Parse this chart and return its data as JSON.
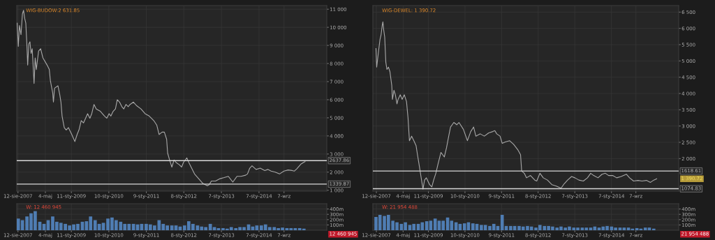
{
  "chart_data": [
    {
      "type": "line",
      "title": "WIG-BUDOW:2 631.85",
      "grid": true,
      "xlim": [
        "2007-07-31",
        "2015-10-27"
      ],
      "ylim": [
        950,
        11200
      ],
      "xticks": [
        {
          "value": "2007-08-12",
          "label": "12-sie-2007"
        },
        {
          "value": "2008-05-04",
          "label": "4-maj"
        },
        {
          "value": "2009-01-11",
          "label": "11-sty-2009"
        },
        {
          "value": "2010-01-10",
          "label": "10-sty-2010"
        },
        {
          "value": "2011-01-09",
          "label": "9-sty-2011"
        },
        {
          "value": "2012-01-08",
          "label": "8-sty-2012"
        },
        {
          "value": "2013-01-07",
          "label": "7-sty-2013"
        },
        {
          "value": "2014-01-07",
          "label": "7-sty-2014"
        },
        {
          "value": "2014-09-07",
          "label": "7-wrz"
        }
      ],
      "yticks": [
        {
          "value": 1000,
          "label": "1 000"
        },
        {
          "value": 2000,
          "label": "2 000"
        },
        {
          "value": 3000,
          "label": "3 000"
        },
        {
          "value": 4000,
          "label": "4 000"
        },
        {
          "value": 5000,
          "label": "5 000"
        },
        {
          "value": 6000,
          "label": "6 000"
        },
        {
          "value": 7000,
          "label": "7 000"
        },
        {
          "value": 8000,
          "label": "8 000"
        },
        {
          "value": 9000,
          "label": "9 000"
        },
        {
          "value": 10000,
          "label": "10 000"
        },
        {
          "value": 11000,
          "label": "11 000"
        }
      ],
      "ref_lines": [
        {
          "axis": "y",
          "value": 2637.86,
          "label": "2637.86",
          "color": "#d8d8d8"
        },
        {
          "axis": "y",
          "value": 1339.87,
          "label": "1339.87",
          "color": "#d8d8d8"
        }
      ],
      "series": [
        {
          "color": "#a8a8a8",
          "x": [
            "2007-08-04",
            "2007-08-15",
            "2007-08-26",
            "2007-09-10",
            "2007-09-24",
            "2007-10-05",
            "2007-10-16",
            "2007-10-27",
            "2007-11-07",
            "2007-11-14",
            "2007-11-25",
            "2007-12-06",
            "2007-12-17",
            "2007-12-28",
            "2008-01-15",
            "2008-01-26",
            "2008-02-06",
            "2008-02-28",
            "2008-03-19",
            "2008-04-10",
            "2008-05-20",
            "2008-06-11",
            "2008-06-22",
            "2008-07-14",
            "2008-07-21",
            "2008-08-01",
            "2008-09-03",
            "2008-09-21",
            "2008-10-02",
            "2008-10-13",
            "2008-11-03",
            "2008-11-22",
            "2008-12-14",
            "2009-01-15",
            "2009-02-14",
            "2009-03-08",
            "2009-03-26",
            "2009-04-17",
            "2009-05-09",
            "2009-06-18",
            "2009-07-10",
            "2009-07-28",
            "2009-08-19",
            "2009-09-10",
            "2009-10-20",
            "2009-11-29",
            "2009-12-21",
            "2010-01-12",
            "2010-01-30",
            "2010-02-21",
            "2010-03-15",
            "2010-04-02",
            "2010-04-24",
            "2010-05-16",
            "2010-06-04",
            "2010-06-25",
            "2010-07-17",
            "2010-08-04",
            "2010-09-06",
            "2010-10-05",
            "2010-11-18",
            "2010-12-28",
            "2011-02-06",
            "2011-03-22",
            "2011-04-21",
            "2011-05-13",
            "2011-06-11",
            "2011-07-03",
            "2011-07-25",
            "2011-08-04",
            "2011-08-23",
            "2011-09-14",
            "2011-10-05",
            "2011-10-24",
            "2011-11-25",
            "2011-12-17",
            "2012-01-05",
            "2012-02-06",
            "2012-02-25",
            "2012-03-30",
            "2012-04-21",
            "2012-05-31",
            "2012-07-10",
            "2012-08-23",
            "2012-09-10",
            "2012-10-02",
            "2012-11-11",
            "2012-12-25",
            "2013-02-03",
            "2013-03-15",
            "2013-04-28",
            "2013-06-07",
            "2013-07-17",
            "2013-08-30",
            "2013-09-17",
            "2013-10-09",
            "2013-10-31",
            "2013-12-10",
            "2014-01-19",
            "2014-03-04",
            "2014-04-02",
            "2014-05-05",
            "2014-06-14",
            "2014-07-25",
            "2014-09-06",
            "2014-10-16",
            "2014-11-25",
            "2014-12-17",
            "2015-01-08",
            "2015-02-17",
            "2015-03-19",
            "2015-03-30"
          ],
          "values": [
            10230,
            8950,
            10100,
            9590,
            10740,
            10940,
            10490,
            10230,
            8950,
            7920,
            9080,
            9200,
            8560,
            8820,
            6900,
            8310,
            7670,
            8690,
            8820,
            8310,
            7920,
            7670,
            7030,
            6380,
            5870,
            6640,
            6770,
            6260,
            5870,
            5100,
            4460,
            4330,
            4460,
            4080,
            3690,
            4080,
            4330,
            4850,
            4720,
            5230,
            4980,
            5230,
            5740,
            5490,
            5360,
            5100,
            4980,
            5230,
            5100,
            5360,
            5490,
            6000,
            5870,
            5620,
            5490,
            5740,
            5620,
            5740,
            5870,
            5680,
            5490,
            5230,
            5100,
            4850,
            4590,
            4080,
            4210,
            4210,
            3820,
            3050,
            2670,
            2280,
            2670,
            2540,
            2410,
            2280,
            2540,
            2790,
            2540,
            2150,
            1900,
            1640,
            1380,
            1250,
            1310,
            1510,
            1510,
            1640,
            1700,
            1770,
            1450,
            1770,
            1770,
            1830,
            1900,
            2220,
            2350,
            2150,
            2220,
            2090,
            2150,
            2060,
            2000,
            1900,
            2060,
            2120,
            2090,
            2060,
            2180,
            2440,
            2550,
            2580
          ]
        }
      ]
    },
    {
      "type": "line",
      "title": "WIG-DEWEL: 1 390.72",
      "grid": true,
      "xlim": [
        "2007-07-08",
        "2015-11-07"
      ],
      "ylim": [
        1000,
        6700
      ],
      "xticks": [
        {
          "value": "2007-08-12",
          "label": "12-sie-2007"
        },
        {
          "value": "2008-05-04",
          "label": "4-maj"
        },
        {
          "value": "2009-01-11",
          "label": "11-sty-2009"
        },
        {
          "value": "2010-01-10",
          "label": "10-sty-2010"
        },
        {
          "value": "2011-01-09",
          "label": "9-sty-2011"
        },
        {
          "value": "2012-01-08",
          "label": "8-sty-2012"
        },
        {
          "value": "2013-01-07",
          "label": "7-sty-2013"
        },
        {
          "value": "2014-01-07",
          "label": "7-sty-2014"
        },
        {
          "value": "2014-09-07",
          "label": "7-wrz"
        }
      ],
      "yticks": [
        {
          "value": 2000,
          "label": "2 000"
        },
        {
          "value": 2500,
          "label": "2 500"
        },
        {
          "value": 3000,
          "label": "3 000"
        },
        {
          "value": 3500,
          "label": "3 500"
        },
        {
          "value": 4000,
          "label": "4 000"
        },
        {
          "value": 4500,
          "label": "4 500"
        },
        {
          "value": 5000,
          "label": "5 000"
        },
        {
          "value": 5500,
          "label": "5 500"
        },
        {
          "value": 6000,
          "label": "6 000"
        },
        {
          "value": 6500,
          "label": "6 500"
        }
      ],
      "ref_lines": [
        {
          "axis": "y",
          "value": 1618.61,
          "label": "1618.61",
          "color": "#d8d8d8"
        },
        {
          "axis": "y",
          "value": 1074.83,
          "label": "1074.83",
          "color": "#d8d8d8"
        }
      ],
      "annotations": [
        "1 390.72"
      ],
      "series": [
        {
          "color": "#a8a8a8",
          "x": [
            "2007-08-08",
            "2007-08-15",
            "2007-09-03",
            "2007-09-17",
            "2007-09-28",
            "2007-10-09",
            "2007-10-16",
            "2007-10-24",
            "2007-11-03",
            "2007-11-14",
            "2007-11-25",
            "2007-12-10",
            "2007-12-25",
            "2008-01-12",
            "2008-01-19",
            "2008-02-03",
            "2008-02-17",
            "2008-03-04",
            "2008-03-15",
            "2008-04-06",
            "2008-04-24",
            "2008-05-16",
            "2008-06-07",
            "2008-06-22",
            "2008-07-06",
            "2008-07-28",
            "2008-08-19",
            "2008-09-10",
            "2008-09-24",
            "2008-10-09",
            "2008-10-31",
            "2008-11-18",
            "2008-12-03",
            "2008-12-21",
            "2009-01-23",
            "2009-02-14",
            "2009-03-04",
            "2009-03-26",
            "2009-04-17",
            "2009-05-16",
            "2009-06-18",
            "2009-07-10",
            "2009-08-01",
            "2009-08-19",
            "2009-09-21",
            "2009-10-20",
            "2009-11-11",
            "2009-12-25",
            "2010-02-03",
            "2010-03-08",
            "2010-04-06",
            "2010-04-28",
            "2010-06-11",
            "2010-07-21",
            "2010-09-03",
            "2010-10-13",
            "2010-11-03",
            "2010-11-22",
            "2010-12-25",
            "2011-01-15",
            "2011-02-14",
            "2011-03-30",
            "2011-05-09",
            "2011-06-22",
            "2011-07-17",
            "2011-07-28",
            "2011-08-23",
            "2011-09-14",
            "2011-10-24",
            "2011-12-06",
            "2011-12-25",
            "2012-01-26",
            "2012-02-28",
            "2012-04-10",
            "2012-05-24",
            "2012-07-03",
            "2012-08-23",
            "2012-09-24",
            "2012-10-27",
            "2012-12-06",
            "2013-01-08",
            "2013-02-17",
            "2013-04-02",
            "2013-05-13",
            "2013-06-14",
            "2013-07-14",
            "2013-08-26",
            "2013-10-05",
            "2013-11-07",
            "2013-12-10",
            "2014-01-19",
            "2014-02-28",
            "2014-04-13",
            "2014-06-04",
            "2014-07-06",
            "2014-08-15",
            "2014-09-28",
            "2014-11-07",
            "2014-12-21",
            "2015-01-30",
            "2015-03-04",
            "2015-04-02"
          ],
          "values": [
            5380,
            4810,
            5310,
            5660,
            5810,
            6090,
            6200,
            5950,
            5730,
            4960,
            4740,
            4810,
            4670,
            4250,
            3820,
            4100,
            3960,
            3680,
            3820,
            3960,
            3820,
            3960,
            3750,
            3250,
            2550,
            2690,
            2550,
            2400,
            2120,
            1840,
            1410,
            1060,
            1340,
            1410,
            1200,
            1130,
            1340,
            1550,
            1840,
            2190,
            2050,
            2330,
            2690,
            2970,
            3110,
            3040,
            3110,
            2900,
            2550,
            2830,
            2970,
            2690,
            2760,
            2690,
            2790,
            2830,
            2860,
            2760,
            2690,
            2470,
            2510,
            2550,
            2440,
            2260,
            2120,
            1620,
            1550,
            1410,
            1480,
            1340,
            1310,
            1550,
            1410,
            1340,
            1200,
            1160,
            1090,
            1230,
            1340,
            1450,
            1410,
            1340,
            1310,
            1410,
            1550,
            1480,
            1410,
            1520,
            1550,
            1480,
            1480,
            1410,
            1450,
            1520,
            1410,
            1310,
            1330,
            1310,
            1330,
            1270,
            1340,
            1380
          ]
        }
      ]
    },
    {
      "type": "bar",
      "title": "W: 12 460 945",
      "grid": true,
      "xlim": [
        "2007-07-31",
        "2015-10-27"
      ],
      "ylim": [
        0,
        500
      ],
      "xticks": [
        {
          "value": "2007-08-12",
          "label": "12-sie-2007"
        },
        {
          "value": "2008-05-04",
          "label": "4-maj"
        },
        {
          "value": "2009-01-11",
          "label": "11-sty-2009"
        },
        {
          "value": "2010-01-10",
          "label": "10-sty-2010"
        },
        {
          "value": "2011-01-09",
          "label": "9-sty-2011"
        },
        {
          "value": "2012-01-08",
          "label": "8-sty-2012"
        },
        {
          "value": "2013-01-07",
          "label": "7-sty-2013"
        },
        {
          "value": "2014-01-07",
          "label": "7-sty-2014"
        },
        {
          "value": "2014-09-07",
          "label": "7-wrz"
        }
      ],
      "yticks": [
        {
          "value": 100,
          "label": "100m"
        },
        {
          "value": 200,
          "label": "200m"
        },
        {
          "value": 300,
          "label": "300m"
        },
        {
          "value": 400,
          "label": "400m"
        }
      ],
      "annotations": [
        "12 460 945"
      ],
      "series": [
        {
          "color": "#4f7db3",
          "x": [
            "2007-08-15",
            "2007-09-24",
            "2007-11-07",
            "2007-12-17",
            "2008-01-26",
            "2008-03-11",
            "2008-04-21",
            "2008-05-31",
            "2008-07-14",
            "2008-08-23",
            "2008-10-02",
            "2008-11-14",
            "2008-12-25",
            "2009-02-03",
            "2009-03-15",
            "2009-04-28",
            "2009-06-07",
            "2009-07-17",
            "2009-08-30",
            "2009-10-09",
            "2009-11-18",
            "2010-01-01",
            "2010-02-10",
            "2010-03-22",
            "2010-05-05",
            "2010-06-14",
            "2010-07-25",
            "2010-09-06",
            "2010-10-16",
            "2010-11-25",
            "2011-01-08",
            "2011-02-17",
            "2011-03-30",
            "2011-05-13",
            "2011-06-22",
            "2011-08-01",
            "2011-09-14",
            "2011-10-24",
            "2011-12-03",
            "2012-01-15",
            "2012-02-25",
            "2012-04-06",
            "2012-05-20",
            "2012-06-29",
            "2012-08-08",
            "2012-09-21",
            "2012-10-31",
            "2012-12-10",
            "2013-01-23",
            "2013-03-04",
            "2013-04-13",
            "2013-05-27",
            "2013-07-06",
            "2013-08-15",
            "2013-09-28",
            "2013-11-07",
            "2013-12-17",
            "2014-01-30",
            "2014-03-11",
            "2014-04-21",
            "2014-06-04",
            "2014-07-14",
            "2014-08-23",
            "2014-10-05",
            "2014-11-14",
            "2014-12-25",
            "2015-02-06",
            "2015-03-19"
          ],
          "values": [
            220,
            190,
            260,
            320,
            360,
            160,
            120,
            190,
            260,
            160,
            140,
            120,
            90,
            110,
            120,
            160,
            170,
            260,
            190,
            120,
            140,
            220,
            240,
            190,
            160,
            120,
            120,
            120,
            110,
            120,
            120,
            110,
            90,
            190,
            120,
            90,
            90,
            90,
            70,
            90,
            170,
            120,
            90,
            70,
            60,
            120,
            60,
            40,
            40,
            30,
            60,
            40,
            60,
            60,
            110,
            70,
            90,
            90,
            110,
            60,
            60,
            40,
            50,
            40,
            40,
            40,
            40,
            30
          ]
        }
      ]
    },
    {
      "type": "bar",
      "title": "W: 21 954 488",
      "grid": true,
      "xlim": [
        "2007-07-08",
        "2015-11-07"
      ],
      "ylim": [
        0,
        500
      ],
      "xticks": [
        {
          "value": "2007-08-12",
          "label": "12-sie-2007"
        },
        {
          "value": "2008-05-04",
          "label": "4-maj"
        },
        {
          "value": "2009-01-11",
          "label": "11-sty-2009"
        },
        {
          "value": "2010-01-10",
          "label": "10-sty-2010"
        },
        {
          "value": "2011-01-09",
          "label": "9-sty-2011"
        },
        {
          "value": "2012-01-08",
          "label": "8-sty-2012"
        },
        {
          "value": "2013-01-07",
          "label": "7-sty-2013"
        },
        {
          "value": "2014-01-07",
          "label": "7-sty-2014"
        },
        {
          "value": "2014-09-07",
          "label": "7-wrz"
        }
      ],
      "yticks": [
        {
          "value": 100,
          "label": "100m"
        },
        {
          "value": 200,
          "label": "200m"
        },
        {
          "value": 300,
          "label": "300m"
        },
        {
          "value": 400,
          "label": "400m"
        }
      ],
      "annotations": [
        "21 954 488"
      ],
      "series": [
        {
          "color": "#4f7db3",
          "x": [
            "2007-08-08",
            "2007-09-17",
            "2007-10-31",
            "2007-12-10",
            "2008-01-23",
            "2008-03-04",
            "2008-04-17",
            "2008-05-27",
            "2008-07-10",
            "2008-08-19",
            "2008-10-02",
            "2008-11-11",
            "2008-12-25",
            "2009-02-03",
            "2009-03-19",
            "2009-04-28",
            "2009-06-07",
            "2009-07-21",
            "2009-08-30",
            "2009-10-13",
            "2009-11-22",
            "2010-01-05",
            "2010-02-14",
            "2010-03-30",
            "2010-05-09",
            "2010-06-22",
            "2010-08-01",
            "2010-09-14",
            "2010-10-24",
            "2010-12-03",
            "2011-01-15",
            "2011-02-25",
            "2011-04-10",
            "2011-05-20",
            "2011-07-03",
            "2011-08-12",
            "2011-09-24",
            "2011-11-03",
            "2011-12-17",
            "2012-01-26",
            "2012-03-11",
            "2012-04-21",
            "2012-05-31",
            "2012-07-14",
            "2012-08-23",
            "2012-10-05",
            "2012-11-14",
            "2012-12-28",
            "2013-02-06",
            "2013-03-22",
            "2013-05-02",
            "2013-06-14",
            "2013-07-25",
            "2013-09-06",
            "2013-10-16",
            "2013-11-25",
            "2014-01-08",
            "2014-02-17",
            "2014-04-02",
            "2014-05-13",
            "2014-06-25",
            "2014-08-04",
            "2014-09-17",
            "2014-10-27",
            "2014-12-10",
            "2015-01-19",
            "2015-03-04"
          ],
          "values": [
            250,
            290,
            270,
            290,
            180,
            150,
            120,
            150,
            100,
            120,
            120,
            150,
            170,
            180,
            220,
            180,
            180,
            240,
            180,
            150,
            120,
            130,
            150,
            130,
            120,
            100,
            100,
            80,
            120,
            80,
            290,
            80,
            80,
            80,
            80,
            70,
            80,
            70,
            50,
            100,
            80,
            80,
            70,
            50,
            70,
            50,
            70,
            50,
            50,
            50,
            50,
            50,
            70,
            50,
            70,
            80,
            70,
            50,
            50,
            50,
            50,
            30,
            40,
            30,
            50,
            50,
            30
          ]
        }
      ]
    }
  ]
}
